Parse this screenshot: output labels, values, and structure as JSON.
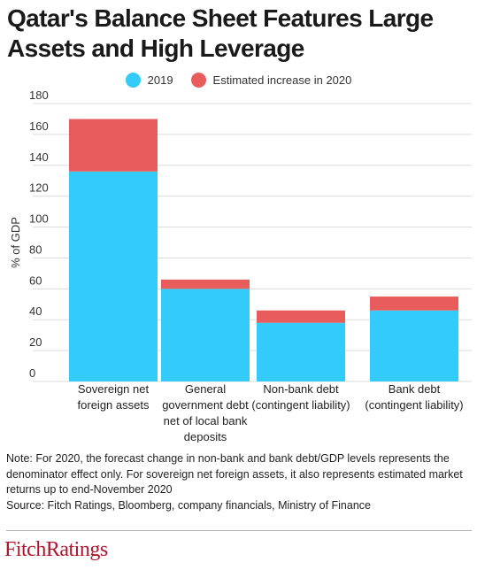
{
  "header": {
    "title_line1": "Qatar's Balance Sheet Features Large",
    "title_line2": "Assets and High Leverage"
  },
  "colors": {
    "series_2019": "#33ccfa",
    "series_increase": "#e95c5c",
    "grid": "#dcdcdc",
    "logo": "#b0152c"
  },
  "chart_data": {
    "type": "bar",
    "stacked": true,
    "categories": [
      [
        "Sovereign net",
        "foreign assets"
      ],
      [
        "General",
        "government debt",
        "net of local bank",
        "deposits"
      ],
      [
        "Non-bank debt",
        "(contingent liability)"
      ],
      [
        "Bank debt",
        "(contingent liability)"
      ]
    ],
    "series": [
      {
        "name": "2019",
        "values": [
          136,
          60,
          38,
          46
        ]
      },
      {
        "name": "Estimated increase in 2020",
        "values": [
          34,
          6,
          8,
          9
        ]
      }
    ],
    "ylabel": "% of GDP",
    "ylim": [
      0,
      180
    ],
    "yticks": [
      0,
      20,
      40,
      60,
      80,
      100,
      120,
      140,
      160,
      180
    ],
    "grid": true,
    "legend_position": "top"
  },
  "note": {
    "text": "Note:  For 2020, the forecast change in non-bank and bank debt/GDP levels represents the denominator effect only. For sovereign net foreign assets, it also represents estimated market returns up to end-November 2020",
    "source": "Source: Fitch Ratings, Bloomberg, company financials, Ministry of Finance"
  },
  "logo": {
    "text": "FitchRatings"
  }
}
